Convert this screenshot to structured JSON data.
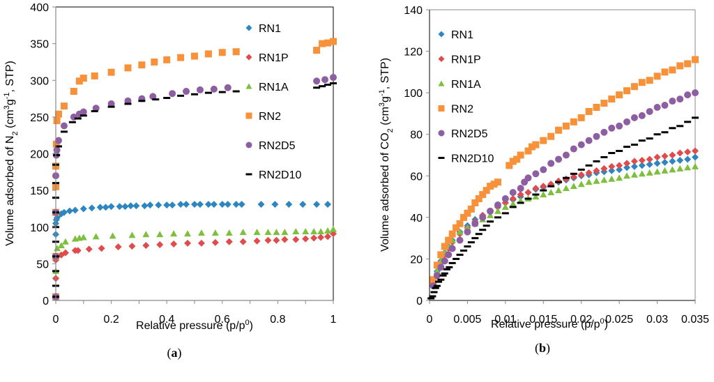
{
  "chart_data": [
    {
      "id": "a",
      "type": "scatter",
      "panel_label": "(a)",
      "panel_letter": "a",
      "title": "",
      "xlabel": "Relative pressure (p/p0)",
      "xlabel_main": "Relative pressure (p/p",
      "xlabel_sup": "0",
      "xlabel_end": ")",
      "ylabel": "Volume adsorbed of N2 (cm3g-1, STP)",
      "xlim": [
        0,
        1
      ],
      "ylim": [
        0,
        400
      ],
      "xticks": [
        "0",
        "0.2",
        "0.4",
        "0.6",
        "0.8",
        "1"
      ],
      "xtick_values": [
        0,
        0.2,
        0.4,
        0.6,
        0.8,
        1
      ],
      "yticks": [
        "0",
        "50",
        "100",
        "150",
        "200",
        "250",
        "300",
        "350",
        "400"
      ],
      "ytick_values": [
        0,
        50,
        100,
        150,
        200,
        250,
        300,
        350,
        400
      ],
      "grid": false,
      "legend_position": "top-right",
      "series": [
        {
          "name": "RN1",
          "marker": "diamond",
          "color": "#2e86c1",
          "x": [
            0.0,
            0.0,
            0.0,
            0.0,
            0.0,
            0.002,
            0.005,
            0.01,
            0.02,
            0.03,
            0.05,
            0.07,
            0.1,
            0.13,
            0.16,
            0.18,
            0.2,
            0.23,
            0.25,
            0.27,
            0.29,
            0.32,
            0.34,
            0.37,
            0.4,
            0.42,
            0.45,
            0.47,
            0.5,
            0.52,
            0.55,
            0.57,
            0.6,
            0.62,
            0.65,
            0.67,
            0.74,
            0.79,
            0.84,
            0.89,
            0.94,
            0.98
          ],
          "y": [
            5,
            30,
            60,
            90,
            105,
            110,
            113,
            116,
            118,
            120,
            122,
            123,
            125,
            126,
            127,
            127,
            128,
            128,
            128,
            129,
            129,
            129,
            130,
            130,
            130,
            130,
            131,
            131,
            131,
            131,
            131,
            131,
            131,
            131,
            131,
            131,
            131,
            131,
            131,
            131,
            131,
            131
          ]
        },
        {
          "name": "RN1P",
          "marker": "diamond",
          "color": "#e04b4b",
          "x": [
            0.0,
            0.0,
            0.0,
            0.005,
            0.02,
            0.035,
            0.07,
            0.08,
            0.12,
            0.165,
            0.225,
            0.275,
            0.325,
            0.375,
            0.425,
            0.475,
            0.525,
            0.575,
            0.625,
            0.675,
            0.725,
            0.765,
            0.795,
            0.825,
            0.865,
            0.9,
            0.93,
            0.955,
            0.98,
            1.0
          ],
          "y": [
            5,
            30,
            55,
            60,
            62,
            65,
            68,
            68,
            70,
            71,
            73,
            74,
            75,
            76,
            77,
            78,
            78,
            79,
            80,
            80,
            81,
            82,
            82,
            83,
            83,
            84,
            85,
            86,
            87,
            91
          ]
        },
        {
          "name": "RN1A",
          "marker": "triangle",
          "color": "#7fbf3f",
          "x": [
            0.0,
            0.0,
            0.005,
            0.02,
            0.035,
            0.07,
            0.085,
            0.1,
            0.145,
            0.205,
            0.275,
            0.325,
            0.375,
            0.425,
            0.475,
            0.525,
            0.575,
            0.625,
            0.675,
            0.725,
            0.765,
            0.795,
            0.825,
            0.865,
            0.9,
            0.93,
            0.955,
            0.98,
            1.0
          ],
          "y": [
            5,
            40,
            71,
            75,
            80,
            84,
            85,
            86,
            87,
            88,
            89,
            90,
            90,
            91,
            91,
            92,
            92,
            92,
            93,
            93,
            93,
            93,
            93,
            94,
            94,
            94,
            94,
            95,
            97
          ]
        },
        {
          "name": "RN2",
          "marker": "square",
          "color": "#f7923a",
          "x": [
            0.0,
            0.0,
            0.0,
            0.0,
            0.0,
            0.002,
            0.004,
            0.01,
            0.03,
            0.065,
            0.085,
            0.1,
            0.14,
            0.2,
            0.26,
            0.31,
            0.355,
            0.4,
            0.45,
            0.5,
            0.55,
            0.6,
            0.65,
            0.94,
            0.96,
            0.98,
            1.0
          ],
          "y": [
            5,
            60,
            120,
            155,
            183,
            213,
            245,
            254,
            265,
            285,
            299,
            303,
            306,
            311,
            317,
            321,
            325,
            328,
            331,
            333,
            336,
            338,
            339,
            341,
            350,
            351,
            353
          ]
        },
        {
          "name": "RN2D5",
          "marker": "circle",
          "color": "#8e5ea2",
          "x": [
            0.0,
            0.0,
            0.0,
            0.0,
            0.002,
            0.004,
            0.01,
            0.03,
            0.065,
            0.085,
            0.1,
            0.145,
            0.2,
            0.26,
            0.31,
            0.35,
            0.42,
            0.47,
            0.52,
            0.57,
            0.62,
            0.94,
            0.97,
            1.0
          ],
          "y": [
            5,
            60,
            120,
            170,
            198,
            205,
            218,
            238,
            250,
            254,
            257,
            262,
            268,
            272,
            275,
            278,
            282,
            285,
            287,
            288,
            290,
            299,
            301,
            304
          ]
        },
        {
          "name": "RN2D10",
          "marker": "dash",
          "color": "#000000",
          "x": [
            0.0,
            0.0,
            0.0,
            0.0,
            0.0,
            0.0,
            0.0,
            0.0,
            0.0,
            0.0,
            0.003,
            0.01,
            0.03,
            0.06,
            0.08,
            0.1,
            0.14,
            0.2,
            0.26,
            0.31,
            0.36,
            0.4,
            0.45,
            0.5,
            0.55,
            0.6,
            0.65,
            0.94,
            0.96,
            0.98,
            1.0
          ],
          "y": [
            5,
            20,
            40,
            60,
            80,
            100,
            120,
            140,
            160,
            185,
            198,
            210,
            230,
            243,
            248,
            252,
            258,
            264,
            268,
            272,
            274,
            276,
            279,
            281,
            283,
            284,
            285,
            290,
            292,
            294,
            296
          ]
        }
      ]
    },
    {
      "id": "b",
      "type": "scatter",
      "panel_label": "(b)",
      "panel_letter": "b",
      "title": "",
      "xlabel": "Relative pressure (p/p0)",
      "xlabel_main": "Relative pressure (p/p",
      "xlabel_sup": "0",
      "xlabel_end": ")",
      "ylabel": "Volume adsorbed  of CO2 (cm3g-1, STP)",
      "xlim": [
        0,
        0.035
      ],
      "ylim": [
        0,
        140
      ],
      "xticks": [
        "0",
        "0.005",
        "0.01",
        "0.015",
        "0.02",
        "0.025",
        "0.03",
        "0.035"
      ],
      "xtick_values": [
        0,
        0.005,
        0.01,
        0.015,
        0.02,
        0.025,
        0.03,
        0.035
      ],
      "yticks": [
        "0",
        "20",
        "40",
        "60",
        "80",
        "100",
        "120",
        "140"
      ],
      "ytick_values": [
        0,
        20,
        40,
        60,
        80,
        100,
        120,
        140
      ],
      "grid": false,
      "legend_position": "top-left",
      "series": [
        {
          "name": "RN1",
          "marker": "diamond",
          "color": "#2e86c1",
          "x": [
            0.0005,
            0.001,
            0.0015,
            0.002,
            0.0025,
            0.003,
            0.004,
            0.005,
            0.006,
            0.007,
            0.008,
            0.009,
            0.01,
            0.011,
            0.012,
            0.013,
            0.014,
            0.015,
            0.016,
            0.017,
            0.018,
            0.019,
            0.02,
            0.021,
            0.022,
            0.023,
            0.024,
            0.025,
            0.026,
            0.027,
            0.028,
            0.029,
            0.03,
            0.031,
            0.032,
            0.033,
            0.034,
            0.035
          ],
          "y": [
            8,
            14,
            19,
            23,
            26,
            29,
            33,
            36,
            39,
            41,
            43,
            45,
            47,
            48.5,
            50,
            52,
            53.5,
            54.5,
            56,
            57,
            58,
            59,
            60,
            60.5,
            61.5,
            62,
            62.5,
            63,
            64,
            64.5,
            65,
            65.5,
            66,
            66.5,
            67,
            67.5,
            68,
            69
          ]
        },
        {
          "name": "RN1P",
          "marker": "diamond",
          "color": "#e04b4b",
          "x": [
            0.0005,
            0.001,
            0.0015,
            0.002,
            0.0025,
            0.003,
            0.004,
            0.005,
            0.006,
            0.007,
            0.008,
            0.009,
            0.01,
            0.011,
            0.012,
            0.013,
            0.014,
            0.015,
            0.016,
            0.017,
            0.018,
            0.019,
            0.02,
            0.021,
            0.022,
            0.023,
            0.024,
            0.025,
            0.026,
            0.027,
            0.028,
            0.029,
            0.03,
            0.031,
            0.032,
            0.033,
            0.034,
            0.035
          ],
          "y": [
            8,
            13,
            18,
            22,
            25,
            28,
            32,
            35,
            38,
            41,
            43,
            45,
            47,
            49,
            51,
            52,
            54,
            55,
            56,
            57.5,
            58.5,
            59.5,
            60.5,
            61.5,
            62.5,
            63.5,
            64.5,
            65,
            66,
            67,
            67.5,
            68,
            69,
            69.5,
            70,
            71,
            71.5,
            72
          ]
        },
        {
          "name": "RN1A",
          "marker": "triangle",
          "color": "#7fbf3f",
          "x": [
            0.0005,
            0.001,
            0.0015,
            0.002,
            0.0025,
            0.003,
            0.004,
            0.005,
            0.006,
            0.007,
            0.008,
            0.009,
            0.01,
            0.011,
            0.012,
            0.013,
            0.014,
            0.015,
            0.016,
            0.017,
            0.018,
            0.019,
            0.02,
            0.021,
            0.022,
            0.023,
            0.024,
            0.025,
            0.026,
            0.027,
            0.028,
            0.029,
            0.03,
            0.031,
            0.032,
            0.033,
            0.034,
            0.035
          ],
          "y": [
            8,
            14,
            19,
            23,
            26,
            29,
            33,
            35,
            37,
            39,
            41,
            43,
            45,
            46.5,
            48,
            49,
            50,
            51,
            52,
            53,
            54,
            55,
            56,
            57,
            57.5,
            58,
            58.5,
            59,
            60,
            60.5,
            61,
            61.5,
            62,
            62.5,
            63,
            63.5,
            64,
            64.5
          ]
        },
        {
          "name": "RN2",
          "marker": "square",
          "color": "#f7923a",
          "x": [
            0.0005,
            0.001,
            0.0015,
            0.002,
            0.0025,
            0.003,
            0.0035,
            0.004,
            0.0045,
            0.005,
            0.0055,
            0.006,
            0.0065,
            0.007,
            0.0075,
            0.008,
            0.0085,
            0.009,
            0.0105,
            0.011,
            0.0115,
            0.012,
            0.013,
            0.0135,
            0.014,
            0.015,
            0.016,
            0.017,
            0.018,
            0.019,
            0.02,
            0.021,
            0.022,
            0.023,
            0.024,
            0.025,
            0.026,
            0.027,
            0.028,
            0.029,
            0.03,
            0.031,
            0.032,
            0.033,
            0.034,
            0.035
          ],
          "y": [
            10,
            17,
            22,
            26,
            29,
            32,
            35,
            37,
            40,
            42,
            44,
            47,
            49,
            51,
            53,
            55,
            56,
            57,
            65,
            67,
            68,
            70,
            72,
            74,
            75,
            77,
            79,
            82,
            84,
            86,
            88,
            91,
            93,
            95,
            97,
            99,
            101,
            103,
            105,
            106,
            108,
            110,
            111,
            113,
            114,
            116
          ]
        },
        {
          "name": "RN2D5",
          "marker": "circle",
          "color": "#8e5ea2",
          "x": [
            0.0005,
            0.001,
            0.0015,
            0.002,
            0.0025,
            0.003,
            0.004,
            0.005,
            0.006,
            0.007,
            0.008,
            0.009,
            0.01,
            0.011,
            0.012,
            0.0125,
            0.013,
            0.014,
            0.015,
            0.016,
            0.017,
            0.018,
            0.019,
            0.02,
            0.021,
            0.022,
            0.023,
            0.024,
            0.025,
            0.026,
            0.027,
            0.028,
            0.029,
            0.03,
            0.031,
            0.032,
            0.033,
            0.034,
            0.035
          ],
          "y": [
            7,
            12,
            16,
            19,
            22,
            25,
            29,
            33,
            37,
            40,
            43,
            46,
            49,
            52,
            54,
            57,
            59,
            61,
            63,
            66,
            68,
            70,
            73,
            75,
            77,
            79,
            81,
            83,
            84,
            86,
            88,
            89,
            91,
            93,
            94,
            96,
            97,
            99,
            100
          ]
        },
        {
          "name": "RN2D10",
          "marker": "dash",
          "color": "#000000",
          "x": [
            0.0002,
            0.0004,
            0.0006,
            0.0008,
            0.001,
            0.0012,
            0.0015,
            0.0018,
            0.002,
            0.0023,
            0.0026,
            0.003,
            0.0035,
            0.004,
            0.0045,
            0.005,
            0.0055,
            0.006,
            0.0065,
            0.007,
            0.0075,
            0.008,
            0.009,
            0.01,
            0.011,
            0.012,
            0.013,
            0.014,
            0.015,
            0.016,
            0.017,
            0.018,
            0.019,
            0.02,
            0.021,
            0.022,
            0.023,
            0.024,
            0.025,
            0.026,
            0.027,
            0.028,
            0.029,
            0.03,
            0.031,
            0.032,
            0.033,
            0.034,
            0.035
          ],
          "y": [
            1,
            2,
            4,
            6,
            7,
            9,
            10,
            12,
            13,
            15,
            16,
            18,
            20,
            22,
            24,
            26,
            28,
            30,
            32,
            34,
            36,
            38,
            40,
            42,
            45,
            47,
            49,
            51,
            53,
            55,
            57,
            59,
            61,
            63,
            65,
            67,
            69,
            71,
            72,
            74,
            75,
            77,
            78,
            80,
            81,
            83,
            84,
            86,
            88
          ]
        }
      ]
    }
  ]
}
